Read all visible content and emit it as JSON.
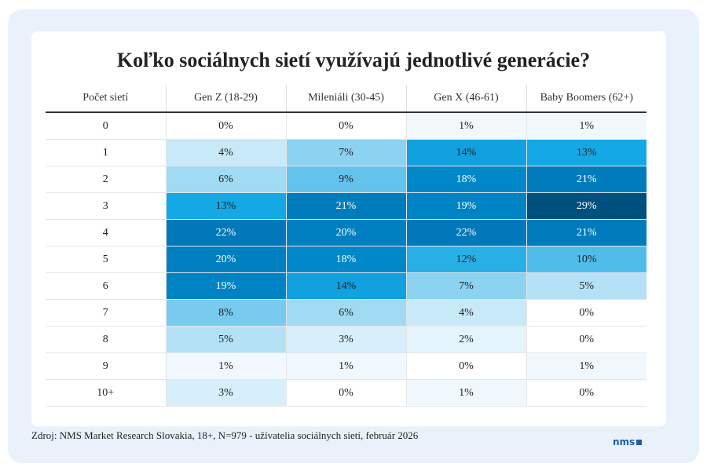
{
  "chart_data": {
    "type": "heatmap",
    "title": "Koľko sociálnych sietí využívajú jednotlivé generácie?",
    "row_header": "Počet sietí",
    "columns": [
      "Gen Z (18-29)",
      "Mileniáli (30-45)",
      "Gen X (46-61)",
      "Baby Boomers (62+)"
    ],
    "rows": [
      "0",
      "1",
      "2",
      "3",
      "4",
      "5",
      "6",
      "7",
      "8",
      "9",
      "10+"
    ],
    "values": [
      [
        0,
        0,
        1,
        1
      ],
      [
        4,
        7,
        14,
        13
      ],
      [
        6,
        9,
        18,
        21
      ],
      [
        13,
        21,
        19,
        29
      ],
      [
        22,
        20,
        22,
        21
      ],
      [
        20,
        18,
        12,
        10
      ],
      [
        19,
        14,
        7,
        5
      ],
      [
        8,
        6,
        4,
        0
      ],
      [
        5,
        3,
        2,
        0
      ],
      [
        1,
        1,
        0,
        1
      ],
      [
        3,
        0,
        1,
        0
      ]
    ],
    "unit": "%",
    "colors": {
      "low": "#ffffff",
      "high": "#00507f"
    }
  },
  "footer": {
    "source": "Zdroj: NMS Market Research Slovakia, 18+, N=979 - užívatelia sociálnych sietí, február 2026",
    "logo": "nms"
  }
}
